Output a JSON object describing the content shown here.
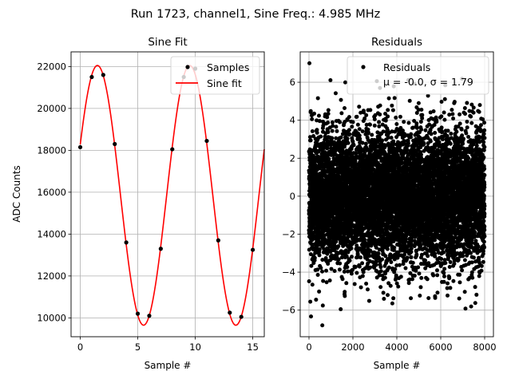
{
  "figure": {
    "suptitle": "Run 1723, channel1, Sine Freq.: 4.985 MHz"
  },
  "chart_data": [
    {
      "type": "line",
      "title": "Sine Fit",
      "xlabel": "Sample #",
      "ylabel": "ADC Counts",
      "xlim": [
        -0.8,
        16.0
      ],
      "ylim": [
        9100,
        22700
      ],
      "xticks": [
        0,
        5,
        10,
        15
      ],
      "yticks": [
        10000,
        12000,
        14000,
        16000,
        18000,
        20000,
        22000
      ],
      "grid": true,
      "legend": "top-right",
      "series": [
        {
          "name": "Samples",
          "kind": "scatter",
          "color": "#000000",
          "x": [
            0,
            1,
            2,
            3,
            4,
            5,
            6,
            7,
            8,
            9,
            10,
            11,
            12,
            13,
            14,
            15
          ],
          "y": [
            18150,
            21500,
            21600,
            18300,
            13600,
            10200,
            10100,
            13300,
            18050,
            21500,
            21900,
            18450,
            13700,
            10250,
            10050,
            13250
          ]
        },
        {
          "name": "Sine fit",
          "kind": "line",
          "color": "#ff0000",
          "function": {
            "offset": 15850,
            "amplitude": 6200,
            "period_samples": 8.025,
            "phase_rad": 0.402,
            "x_from": 0,
            "x_to": 16
          }
        }
      ]
    },
    {
      "type": "scatter",
      "title": "Residuals",
      "xlabel": "Sample #",
      "ylabel": "",
      "xlim": [
        -400,
        8400
      ],
      "ylim": [
        -7.4,
        7.6
      ],
      "xticks": [
        0,
        2000,
        4000,
        6000,
        8000
      ],
      "yticks": [
        -6,
        -4,
        -2,
        0,
        2,
        4,
        6
      ],
      "grid": true,
      "legend": "top-right",
      "series": [
        {
          "name": "Residuals",
          "color": "#000000",
          "n_points": 8000,
          "x_range": [
            0,
            7999
          ],
          "mean": 0.0,
          "std": 1.79,
          "approx_min": -6.8,
          "approx_max": 7.0
        }
      ],
      "legend_stat_text": "μ = -0.0, σ = 1.79"
    }
  ]
}
